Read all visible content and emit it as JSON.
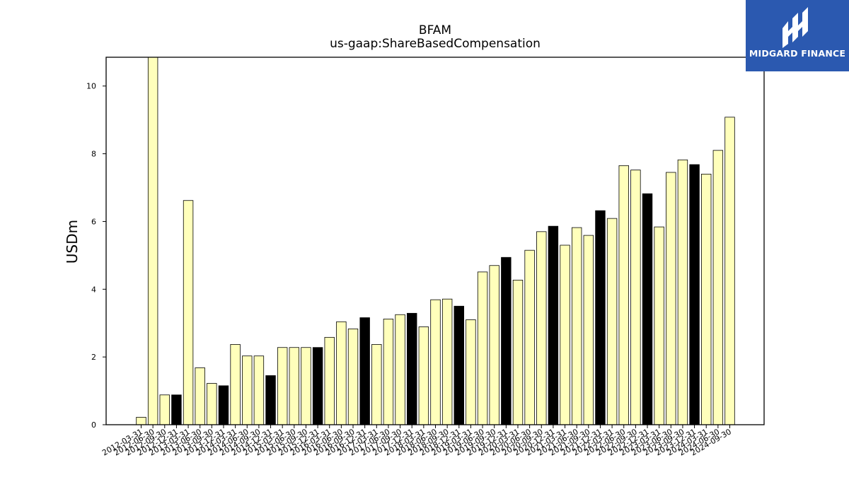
{
  "header": {
    "title": "BFAM",
    "subtitle": "us-gaap:ShareBasedCompensation"
  },
  "logo": {
    "text": "MIDGARD FINANCE",
    "background": "#2b59b0"
  },
  "colors": {
    "bar_yellow": "#ffffbb",
    "bar_black": "#000000",
    "bar_edge": "#000000"
  },
  "chart_data": {
    "type": "bar",
    "title": "BFAM",
    "subtitle": "us-gaap:ShareBasedCompensation",
    "xlabel": "",
    "ylabel": "USDm",
    "ylim": [
      0,
      10.85
    ],
    "yticks": [
      0,
      2,
      4,
      6,
      8,
      10
    ],
    "grid": false,
    "categories": [
      "2012-03-31",
      "2012-06-30",
      "2012-09-30",
      "2012-12-31",
      "2013-03-31",
      "2013-06-30",
      "2013-09-30",
      "2013-12-31",
      "2014-03-31",
      "2014-06-30",
      "2014-09-30",
      "2014-12-31",
      "2015-03-31",
      "2015-06-30",
      "2015-09-30",
      "2015-12-31",
      "2016-03-31",
      "2016-06-30",
      "2016-09-30",
      "2016-12-31",
      "2017-03-31",
      "2017-06-30",
      "2017-09-30",
      "2017-12-31",
      "2018-03-31",
      "2018-06-30",
      "2018-09-30",
      "2018-12-31",
      "2019-03-31",
      "2019-06-30",
      "2019-09-30",
      "2019-12-31",
      "2020-03-31",
      "2020-06-30",
      "2020-09-30",
      "2020-12-31",
      "2021-03-31",
      "2021-06-30",
      "2021-09-30",
      "2021-12-31",
      "2022-03-31",
      "2022-06-30",
      "2022-09-30",
      "2022-12-31",
      "2023-03-31",
      "2023-06-30",
      "2023-09-30",
      "2023-12-31",
      "2024-03-31",
      "2024-06-30",
      "2024-09-30"
    ],
    "values": [
      0.22,
      10.85,
      0.88,
      0.88,
      6.62,
      1.68,
      1.22,
      1.15,
      2.37,
      2.03,
      2.03,
      1.45,
      2.28,
      2.28,
      2.28,
      2.28,
      2.58,
      3.04,
      2.83,
      3.16,
      2.37,
      3.12,
      3.25,
      3.29,
      2.89,
      3.69,
      3.71,
      3.5,
      3.1,
      4.51,
      4.7,
      4.94,
      4.27,
      5.15,
      5.7,
      5.86,
      5.3,
      5.82,
      5.59,
      6.32,
      6.09,
      7.65,
      7.52,
      6.82,
      5.84,
      7.45,
      7.82,
      7.68,
      7.4,
      8.1,
      9.08
    ],
    "highlight": [
      false,
      false,
      false,
      true,
      false,
      false,
      false,
      true,
      false,
      false,
      false,
      true,
      false,
      false,
      false,
      true,
      false,
      false,
      false,
      true,
      false,
      false,
      false,
      true,
      false,
      false,
      false,
      true,
      false,
      false,
      false,
      true,
      false,
      false,
      false,
      true,
      false,
      false,
      false,
      true,
      false,
      false,
      false,
      true,
      false,
      false,
      false,
      true,
      false,
      false,
      false
    ]
  }
}
